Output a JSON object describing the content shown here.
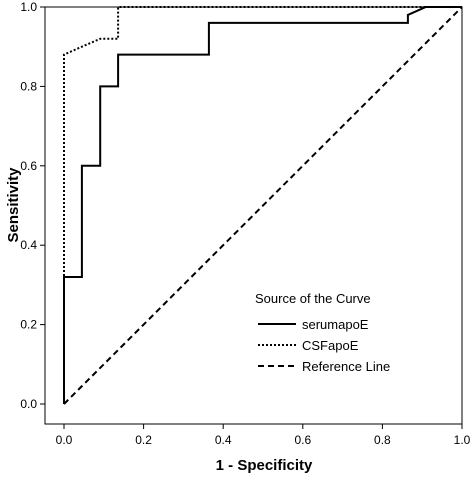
{
  "chart_data": {
    "type": "line",
    "xlabel": "1 - Specificity",
    "ylabel": "Sensitivity",
    "xlim": [
      0,
      1
    ],
    "ylim": [
      0,
      1
    ],
    "x_ticks": [
      "0.0",
      "0.2",
      "0.4",
      "0.6",
      "0.8",
      "1.0"
    ],
    "y_ticks": [
      "0.0",
      "0.2",
      "0.4",
      "0.6",
      "0.8",
      "1.0"
    ],
    "grid": false,
    "legend": {
      "title": "Source of the Curve",
      "placement": "bottom-right"
    },
    "series": [
      {
        "name": "serumapoE",
        "style": "solid",
        "color": "#000000",
        "points": [
          [
            0.0,
            0.0
          ],
          [
            0.0,
            0.32
          ],
          [
            0.045,
            0.32
          ],
          [
            0.045,
            0.6
          ],
          [
            0.091,
            0.6
          ],
          [
            0.091,
            0.64
          ],
          [
            0.091,
            0.8
          ],
          [
            0.136,
            0.8
          ],
          [
            0.136,
            0.88
          ],
          [
            0.364,
            0.88
          ],
          [
            0.364,
            0.96
          ],
          [
            0.864,
            0.96
          ],
          [
            0.864,
            0.98
          ],
          [
            0.909,
            1.0
          ],
          [
            1.0,
            1.0
          ]
        ]
      },
      {
        "name": "CSFapoE",
        "style": "dotted",
        "color": "#000000",
        "points": [
          [
            0.0,
            0.0
          ],
          [
            0.0,
            0.88
          ],
          [
            0.045,
            0.9
          ],
          [
            0.091,
            0.92
          ],
          [
            0.136,
            0.92
          ],
          [
            0.136,
            1.0
          ],
          [
            1.0,
            1.0
          ]
        ]
      },
      {
        "name": "Reference Line",
        "style": "dashed",
        "color": "#000000",
        "points": [
          [
            0.0,
            0.0
          ],
          [
            1.0,
            1.0
          ]
        ]
      }
    ]
  }
}
